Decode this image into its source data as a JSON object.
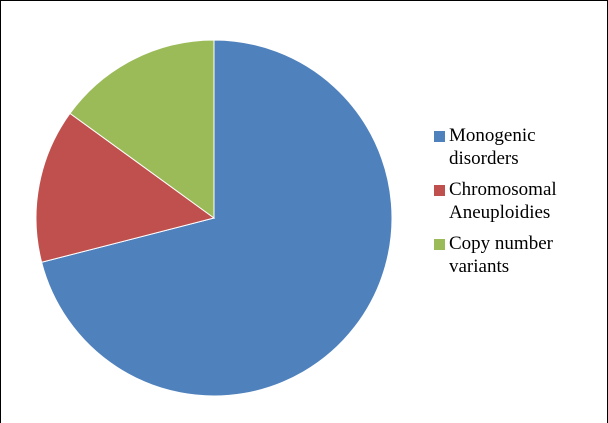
{
  "chart_data": {
    "type": "pie",
    "categories": [
      "Monogenic disorders",
      "Chromosomal Aneuploidies",
      "Copy number variants"
    ],
    "values": [
      71,
      14,
      15
    ],
    "colors": [
      "#4f81bd",
      "#c0504d",
      "#9bbb59"
    ],
    "legend": "right"
  }
}
